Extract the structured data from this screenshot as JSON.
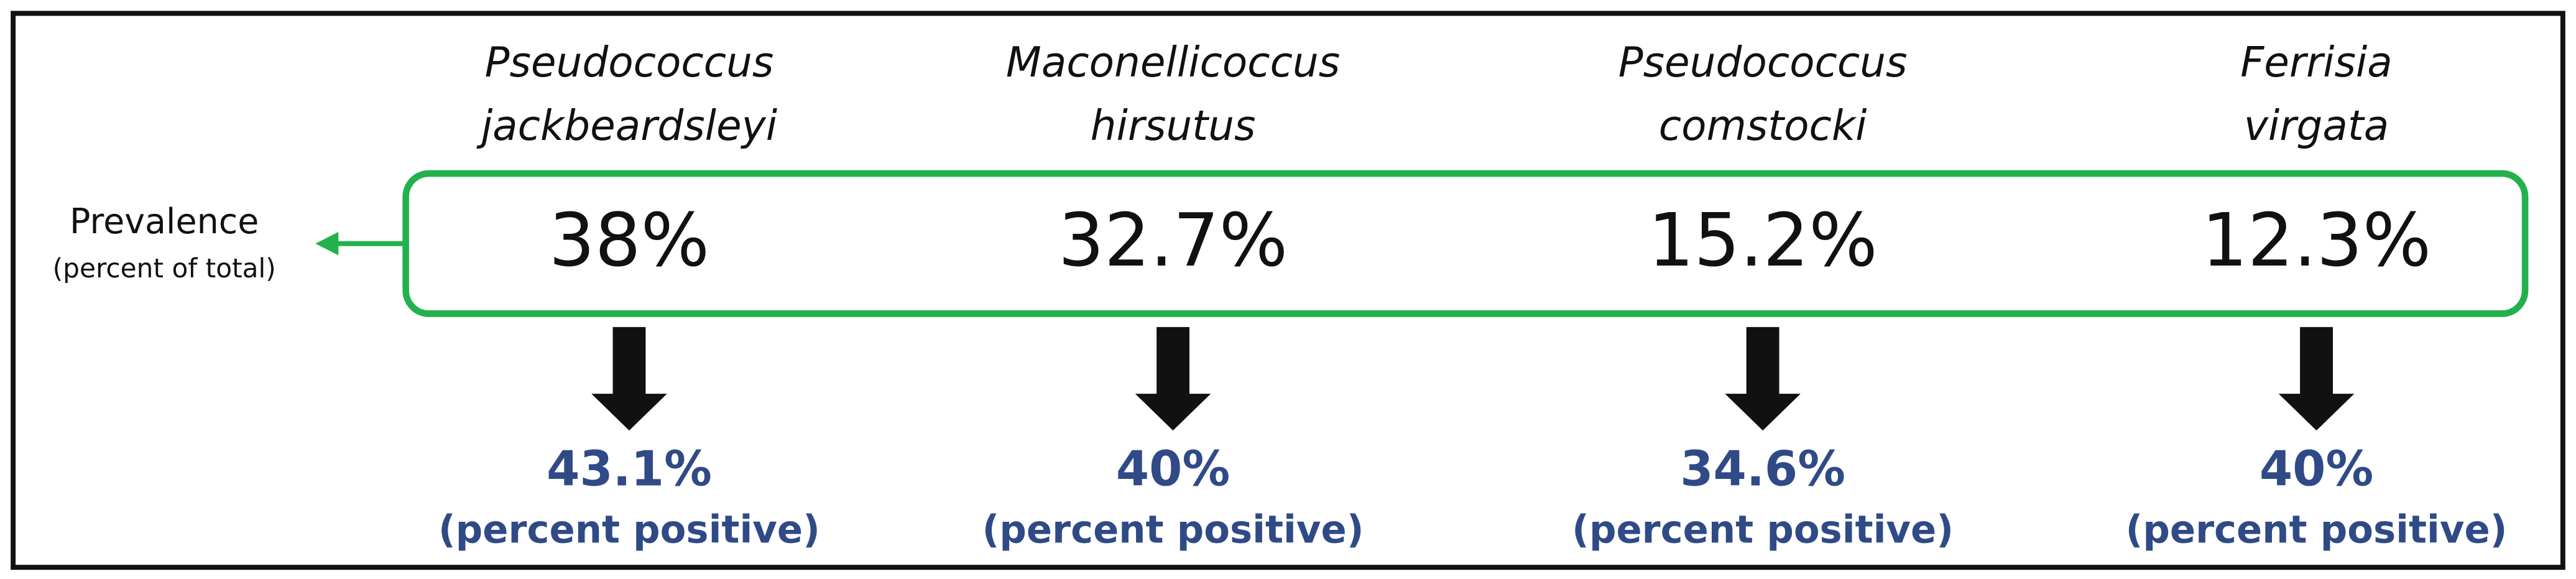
{
  "label": {
    "title": "Prevalence",
    "subtitle": "(percent of total)"
  },
  "species": [
    {
      "name_line1": "Pseudococcus",
      "name_line2": "jackbeardsleyi",
      "prevalence": "38%",
      "positive": "43.1%",
      "positive_note": "(percent positive)"
    },
    {
      "name_line1": "Maconellicoccus",
      "name_line2": "hirsutus",
      "prevalence": "32.7%",
      "positive": "40%",
      "positive_note": "(percent positive)"
    },
    {
      "name_line1": "Pseudococcus",
      "name_line2": "comstocki",
      "prevalence": "15.2%",
      "positive": "34.6%",
      "positive_note": "(percent positive)"
    },
    {
      "name_line1": "Ferrisia",
      "name_line2": "virgata",
      "prevalence": "12.3%",
      "positive": "40%",
      "positive_note": "(percent positive)"
    }
  ]
}
